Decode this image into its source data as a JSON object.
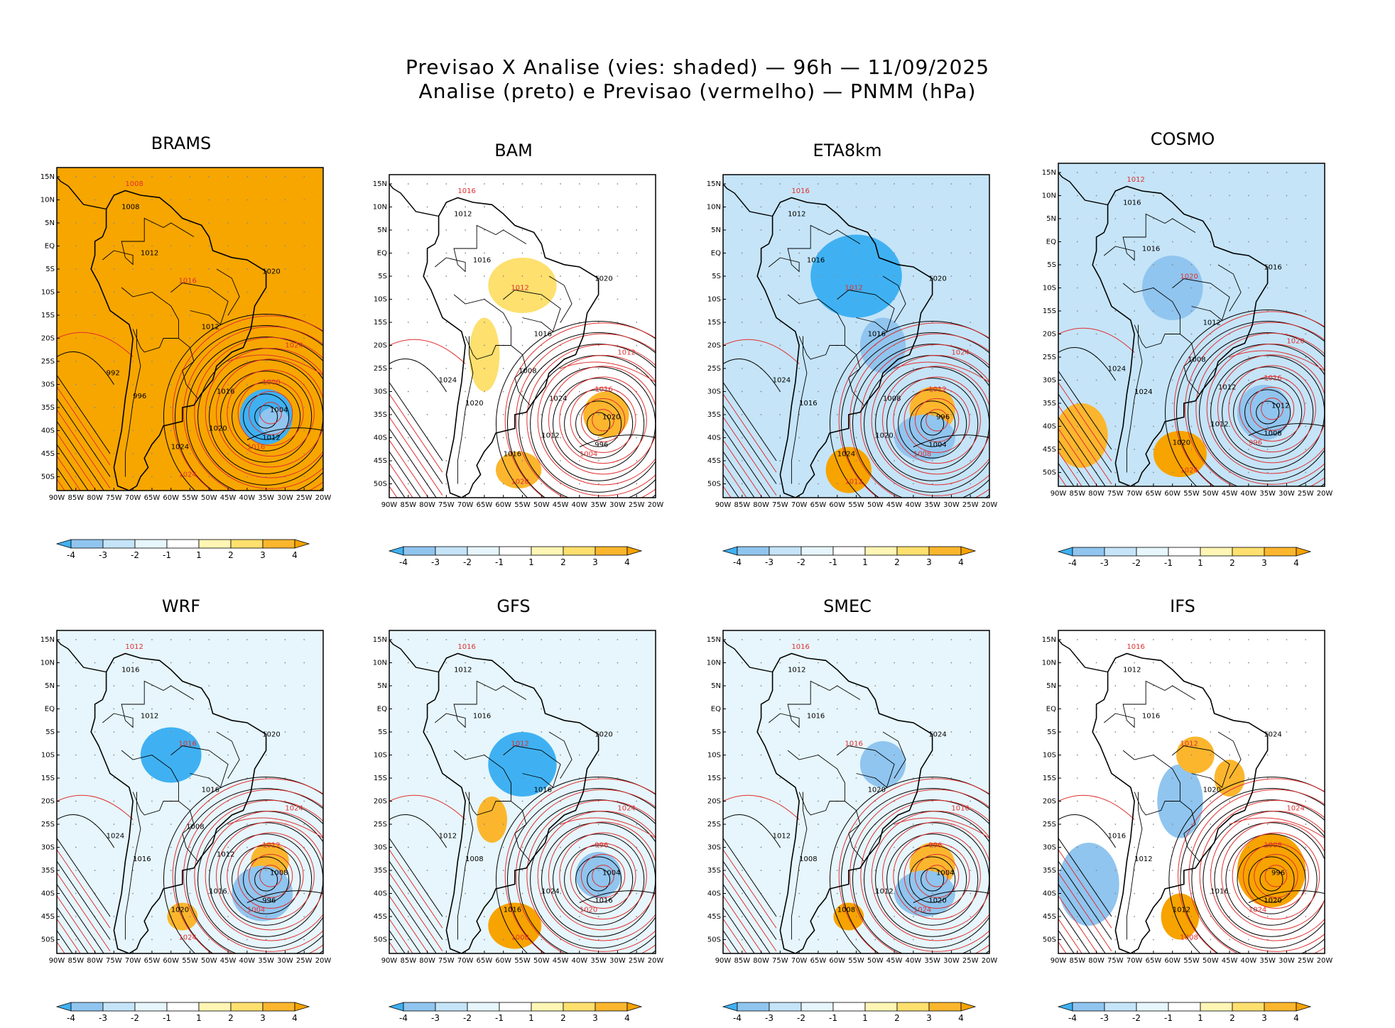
{
  "header": {
    "line1": "Previsao X Analise (vies: shaded) — 96h — 11/09/2025",
    "line2": "Analise (preto) e Previsao (vermelho) — PNMM (hPa)"
  },
  "axes": {
    "lat_labels": [
      "15N",
      "10N",
      "5N",
      "EQ",
      "5S",
      "10S",
      "15S",
      "20S",
      "25S",
      "30S",
      "35S",
      "40S",
      "45S",
      "50S"
    ],
    "lon_labels": [
      "90W",
      "85W",
      "80W",
      "75W",
      "70W",
      "65W",
      "60W",
      "55W",
      "50W",
      "45W",
      "40W",
      "35W",
      "30W",
      "25W",
      "20W"
    ]
  },
  "colorbar": {
    "labels": [
      "-4",
      "-3",
      "-2",
      "-1",
      "1",
      "2",
      "3",
      "4"
    ],
    "colors": [
      "#3fb1f2",
      "#90c5ef",
      "#c5e4f8",
      "#e6f6fc",
      "#ffffff",
      "#fff5b4",
      "#fde06e",
      "#fbb62e",
      "#f7a300"
    ]
  },
  "panels": [
    {
      "name": "BRAMS",
      "base": "#f7a600",
      "isobars": [
        "1008",
        "1008",
        "1012",
        "1016",
        "1012",
        "1020",
        "1024",
        "992",
        "996",
        "1000",
        "1004",
        "1012",
        "1016",
        "1020",
        "1024",
        "1024",
        "1016"
      ]
    },
    {
      "name": "BAM",
      "base": "#ffffff",
      "isobars": [
        "1016",
        "1012",
        "1016",
        "1012",
        "1016",
        "1020",
        "1012",
        "1024",
        "1020",
        "1016",
        "1020",
        "996",
        "1004",
        "1012",
        "1016",
        "1020",
        "1024",
        "1008"
      ]
    },
    {
      "name": "ETA8km",
      "base": "#c5e4f8",
      "isobars": [
        "1016",
        "1012",
        "1016",
        "1012",
        "1016",
        "1020",
        "1024",
        "1024",
        "1016",
        "1012",
        "996",
        "1004",
        "1008",
        "1020",
        "1024",
        "1012",
        "1008"
      ]
    },
    {
      "name": "COSMO",
      "base": "#c5e4f8",
      "isobars": [
        "1012",
        "1016",
        "1016",
        "1020",
        "1012",
        "1016",
        "1020",
        "1024",
        "1024",
        "1016",
        "1012",
        "1008",
        "996",
        "1012",
        "1020",
        "1024",
        "1012",
        "1008"
      ]
    },
    {
      "name": "WRF",
      "base": "#e6f6fc",
      "isobars": [
        "1012",
        "1016",
        "1012",
        "1016",
        "1016",
        "1020",
        "1024",
        "1024",
        "1016",
        "1012",
        "1008",
        "996",
        "1004",
        "1016",
        "1020",
        "1024",
        "1012",
        "1008"
      ]
    },
    {
      "name": "GFS",
      "base": "#e6f6fc",
      "isobars": [
        "1016",
        "1012",
        "1016",
        "1012",
        "1016",
        "1020",
        "1024",
        "1012",
        "1008",
        "996",
        "1004",
        "1016",
        "1020",
        "1024",
        "1016",
        "1008"
      ]
    },
    {
      "name": "SMEC",
      "base": "#e6f6fc",
      "isobars": [
        "1016",
        "1012",
        "1016",
        "1016",
        "1020",
        "1024",
        "1016",
        "1012",
        "1008",
        "996",
        "1004",
        "1020",
        "1024",
        "1012",
        "1008"
      ]
    },
    {
      "name": "IFS",
      "base": "#ffffff",
      "isobars": [
        "1016",
        "1012",
        "1016",
        "1012",
        "1020",
        "1024",
        "1024",
        "1016",
        "1012",
        "1008",
        "996",
        "1020",
        "1024",
        "1016",
        "1012",
        "1008"
      ]
    }
  ]
}
